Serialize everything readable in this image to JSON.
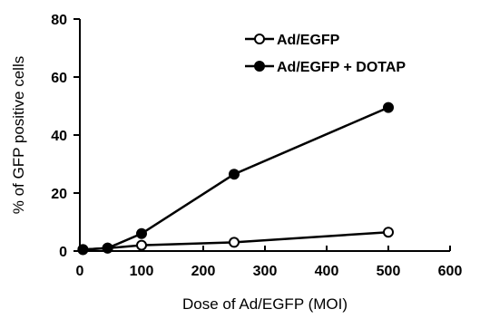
{
  "chart_data": {
    "type": "line",
    "title": "",
    "xlabel": "Dose of Ad/EGFP (MOI)",
    "ylabel": "% of GFP positive cells",
    "xlim": [
      0,
      600
    ],
    "ylim": [
      0,
      80
    ],
    "xticks": [
      0,
      100,
      200,
      300,
      400,
      500,
      600
    ],
    "yticks": [
      0,
      20,
      40,
      60,
      80
    ],
    "grid": false,
    "legend_position": "top-right",
    "x": [
      5,
      45,
      100,
      250,
      500
    ],
    "series": [
      {
        "name": "Ad/EGFP",
        "marker": "open-circle",
        "color": "#000000",
        "values": [
          0.5,
          1.0,
          2.0,
          3.0,
          6.5
        ]
      },
      {
        "name": "Ad/EGFP + DOTAP",
        "marker": "filled-circle",
        "color": "#000000",
        "values": [
          0.5,
          1.0,
          6.0,
          26.5,
          49.5
        ]
      }
    ]
  }
}
